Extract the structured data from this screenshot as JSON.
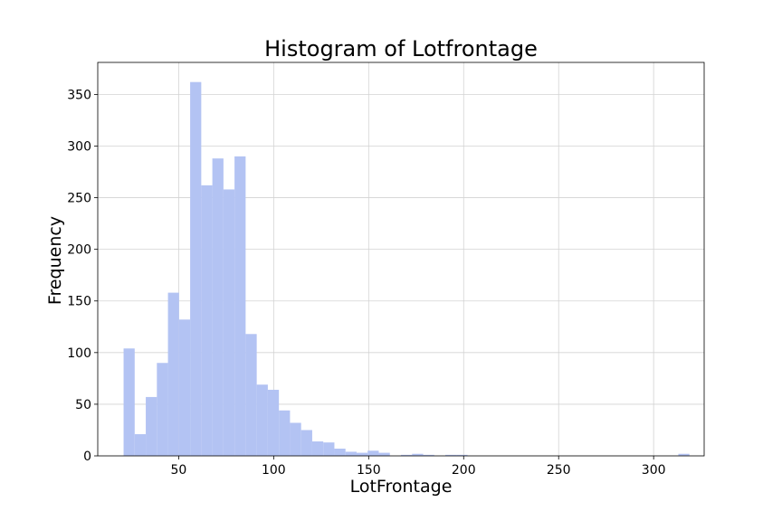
{
  "chart_data": {
    "type": "bar",
    "title": "Histogram of Lotfrontage",
    "xlabel": "LotFrontage",
    "ylabel": "Frequency",
    "xlim": [
      7.4,
      326.6
    ],
    "ylim": [
      0,
      381
    ],
    "xticks": [
      50,
      100,
      150,
      200,
      250,
      300
    ],
    "yticks": [
      0,
      50,
      100,
      150,
      200,
      250,
      300,
      350
    ],
    "grid": true,
    "bar_color": "#b3c3f3",
    "bins": {
      "start": 21,
      "width": 5.84,
      "counts": [
        104,
        21,
        57,
        90,
        158,
        132,
        362,
        262,
        288,
        258,
        290,
        118,
        69,
        64,
        44,
        32,
        25,
        14,
        13,
        7,
        4,
        3,
        5,
        3,
        0,
        1,
        2,
        1,
        0,
        1,
        1,
        0,
        0,
        0,
        0,
        0,
        0,
        0,
        0,
        0,
        0,
        0,
        0,
        0,
        0,
        0,
        0,
        0,
        0,
        0,
        2
      ]
    }
  }
}
